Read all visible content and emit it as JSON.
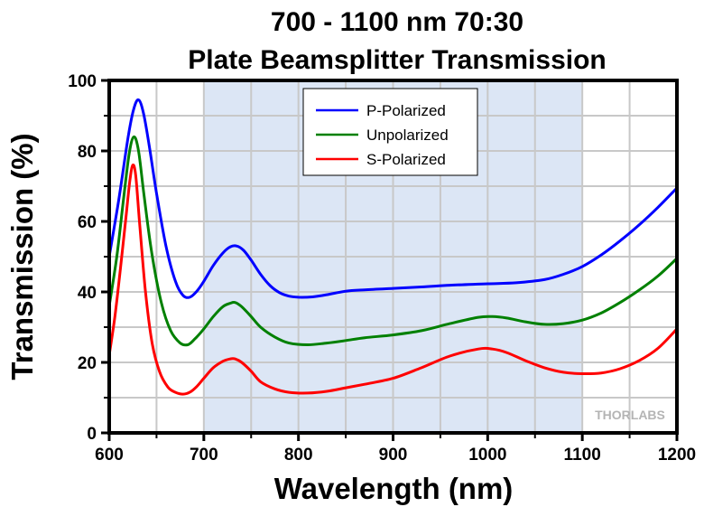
{
  "chart_data": {
    "type": "line",
    "title_lines": [
      "700 - 1100 nm 70:30",
      "Plate Beamsplitter Transmission"
    ],
    "xlabel": "Wavelength (nm)",
    "ylabel": "Transmission (%)",
    "xlim": [
      600,
      1200
    ],
    "ylim": [
      0,
      100
    ],
    "x_ticks": [
      600,
      700,
      800,
      900,
      1000,
      1100,
      1200
    ],
    "x_tick_labels": [
      "600",
      "700",
      "800",
      "900",
      "1000",
      "1100",
      "1200"
    ],
    "x_minor_step": 50,
    "y_ticks": [
      0,
      20,
      40,
      60,
      80,
      100
    ],
    "y_tick_labels": [
      "0",
      "20",
      "40",
      "60",
      "80",
      "100"
    ],
    "y_minor_step": 10,
    "grid": true,
    "shaded_region": {
      "x_range": [
        700,
        1100
      ],
      "color": "#dce6f5",
      "meaning": "design wavelength range"
    },
    "legend_position": "top-center",
    "watermark": "THORLABS",
    "series": [
      {
        "name": "P-Polarized",
        "color": "#0000ff",
        "x": [
          600,
          610,
          620,
          626,
          631,
          636,
          642,
          650,
          660,
          670,
          678,
          685,
          692,
          700,
          710,
          720,
          728,
          735,
          742,
          750,
          760,
          770,
          780,
          790,
          800,
          815,
          830,
          850,
          870,
          900,
          930,
          960,
          1000,
          1030,
          1060,
          1080,
          1100,
          1120,
          1140,
          1160,
          1180,
          1200
        ],
        "y": [
          50,
          66,
          84,
          92,
          94.5,
          91,
          82,
          68,
          53,
          43,
          39,
          38.5,
          40,
          43,
          47.5,
          51,
          52.8,
          53,
          51.8,
          49,
          45,
          41.8,
          39.8,
          38.8,
          38.5,
          38.6,
          39.2,
          40.2,
          40.6,
          41,
          41.4,
          41.9,
          42.3,
          42.6,
          43.5,
          45,
          47.2,
          50.5,
          54.5,
          59,
          64,
          69.5
        ]
      },
      {
        "name": "Unpolarized",
        "color": "#008000",
        "x": [
          600,
          608,
          615,
          621,
          626,
          631,
          637,
          645,
          655,
          665,
          675,
          683,
          690,
          700,
          710,
          720,
          728,
          733,
          740,
          750,
          760,
          775,
          790,
          810,
          830,
          850,
          870,
          900,
          930,
          960,
          990,
          1005,
          1020,
          1040,
          1060,
          1080,
          1100,
          1120,
          1140,
          1160,
          1180,
          1200
        ],
        "y": [
          36,
          50,
          66,
          79,
          84,
          80,
          67,
          51,
          37,
          29,
          25.5,
          25,
          26.5,
          29.5,
          33,
          35.8,
          36.8,
          37,
          35.8,
          33,
          30,
          27.2,
          25.5,
          25,
          25.5,
          26.2,
          27,
          27.8,
          29,
          31,
          32.8,
          33,
          32.6,
          31.5,
          30.8,
          31,
          32,
          34,
          37,
          40.5,
          44.5,
          49.5
        ]
      },
      {
        "name": "S-Polarized",
        "color": "#ff0000",
        "x": [
          600,
          606,
          612,
          618,
          622,
          625,
          628,
          632,
          638,
          645,
          653,
          662,
          670,
          678,
          685,
          692,
          700,
          710,
          720,
          728,
          733,
          740,
          750,
          760,
          775,
          790,
          810,
          830,
          850,
          870,
          900,
          930,
          960,
          990,
          1005,
          1020,
          1040,
          1060,
          1080,
          1100,
          1120,
          1140,
          1160,
          1180,
          1200
        ],
        "y": [
          22,
          33,
          47,
          62,
          72,
          76,
          73,
          60,
          41,
          26,
          17.5,
          13,
          11.5,
          11,
          11.5,
          13,
          15.5,
          18.5,
          20.3,
          21,
          21,
          20,
          17.5,
          14.5,
          12.5,
          11.5,
          11.3,
          11.8,
          12.8,
          13.8,
          15.5,
          18.5,
          21.8,
          23.8,
          23.8,
          22.8,
          20.5,
          18.5,
          17.2,
          16.8,
          17,
          18.2,
          20.5,
          24,
          29.5
        ]
      }
    ]
  }
}
